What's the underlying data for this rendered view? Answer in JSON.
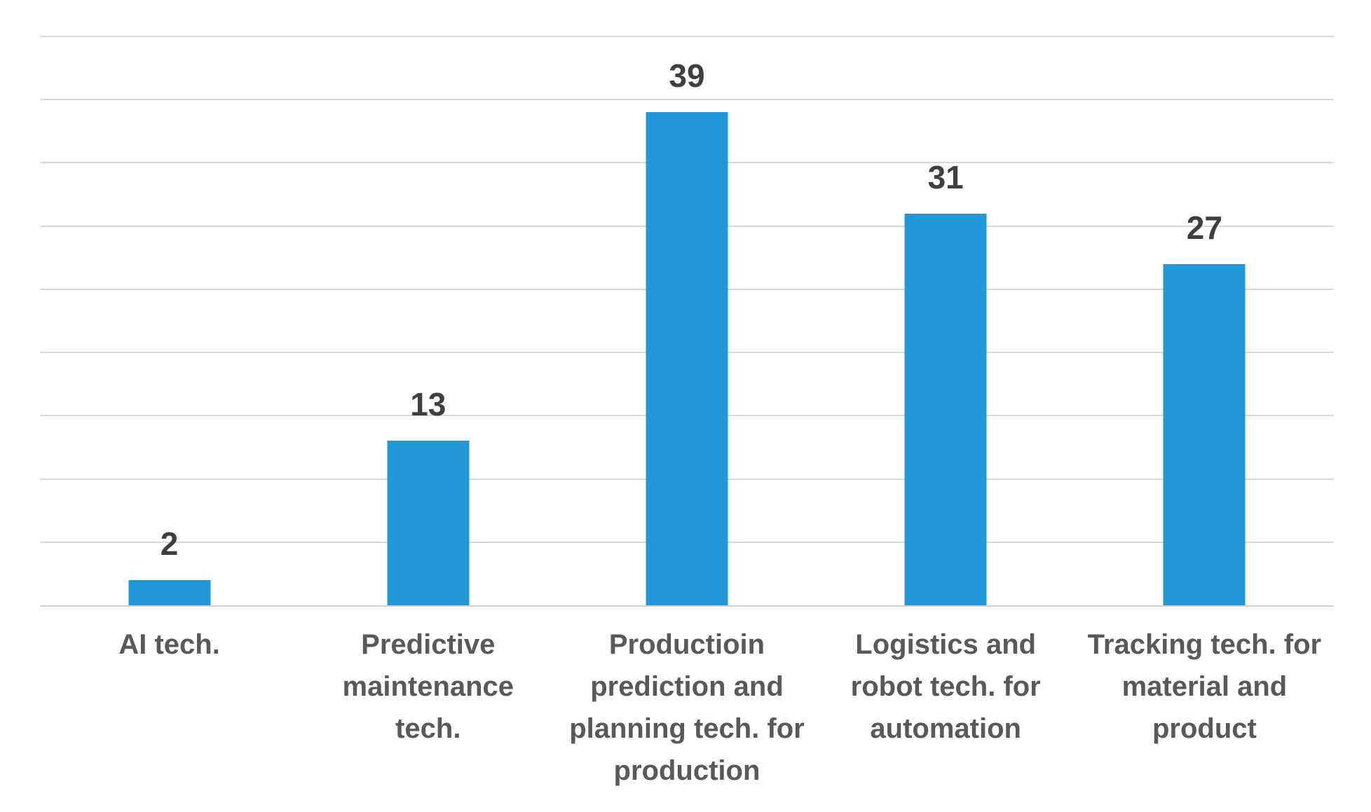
{
  "chart_data": {
    "type": "bar",
    "title": "",
    "xlabel": "",
    "ylabel": "",
    "categories": [
      "AI tech.",
      "Predictive\nmaintenance\ntech.",
      "Productioin\nprediction and\nplanning tech. for\nproduction",
      "Logistics and\nrobot tech. for\nautomation",
      "Tracking tech. for\nmaterial and\nproduct"
    ],
    "values": [
      2,
      13,
      39,
      31,
      27
    ],
    "ylim": [
      0,
      45
    ],
    "gridline_step": 5,
    "grid": "horizontal",
    "legend": "none",
    "data_labels": "above-bars",
    "colors": {
      "bar": "#2199D8",
      "value_label": "#3F3F3F",
      "category_label": "#595959",
      "gridline": "#D9D9D9",
      "axis_line": "#D0D0D0",
      "background": "#FFFFFF"
    }
  }
}
